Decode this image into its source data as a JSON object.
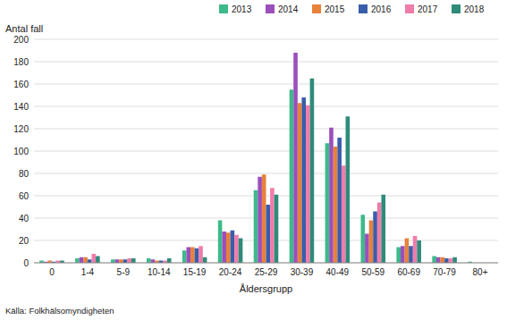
{
  "chart_data": {
    "type": "bar",
    "xlabel": "Åldersgrupp",
    "ylabel": "Antal fall",
    "source": "Källa: Folkhälsomyndigheten",
    "categories": [
      "0",
      "1-4",
      "5-9",
      "10-14",
      "15-19",
      "20-24",
      "25-29",
      "30-39",
      "40-49",
      "50-59",
      "60-69",
      "70-79",
      "80+"
    ],
    "series": [
      {
        "name": "2013",
        "color": "#3dba8a",
        "values": [
          2,
          4,
          3,
          4,
          11,
          38,
          65,
          155,
          107,
          43,
          14,
          6,
          1
        ]
      },
      {
        "name": "2014",
        "color": "#9b4fbb",
        "values": [
          1,
          5,
          3,
          3,
          14,
          28,
          77,
          188,
          121,
          26,
          15,
          5,
          0
        ]
      },
      {
        "name": "2015",
        "color": "#e8813a",
        "values": [
          2,
          5,
          3,
          2,
          14,
          27,
          79,
          143,
          104,
          38,
          22,
          5,
          0
        ]
      },
      {
        "name": "2016",
        "color": "#3a5daa",
        "values": [
          1,
          3,
          3,
          2,
          13,
          29,
          52,
          148,
          112,
          46,
          15,
          4,
          0
        ]
      },
      {
        "name": "2017",
        "color": "#f07caa",
        "values": [
          2,
          8,
          4,
          2,
          15,
          25,
          67,
          141,
          87,
          54,
          24,
          4,
          0
        ]
      },
      {
        "name": "2018",
        "color": "#2e8b7a",
        "values": [
          2,
          6,
          4,
          4,
          5,
          22,
          61,
          165,
          131,
          61,
          20,
          5,
          0
        ]
      }
    ],
    "ylim": [
      0,
      200
    ],
    "yticks": [
      0,
      20,
      40,
      60,
      80,
      100,
      120,
      140,
      160,
      180,
      200
    ],
    "grid": true,
    "legend": "top"
  }
}
